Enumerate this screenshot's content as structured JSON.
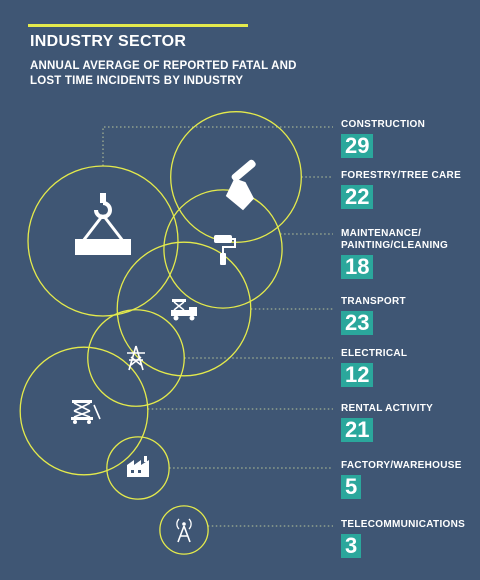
{
  "header": {
    "title": "INDUSTRY SECTOR",
    "subtitle": "ANNUAL AVERAGE OF REPORTED FATAL AND LOST TIME INCIDENTS BY INDUSTRY"
  },
  "colors": {
    "background": "#3f5674",
    "accent": "#e4ea4c",
    "value_box": "#2ba79c",
    "text": "#ffffff"
  },
  "chart_data": {
    "type": "bubble",
    "title": "INDUSTRY SECTOR",
    "subtitle": "ANNUAL AVERAGE OF REPORTED FATAL AND LOST TIME INCIDENTS BY INDUSTRY",
    "categories": [
      "CONSTRUCTION",
      "FORESTRY/TREE CARE",
      "MAINTENANCE/ PAINTING/CLEANING",
      "TRANSPORT",
      "ELECTRICAL",
      "RENTAL ACTIVITY",
      "FACTORY/WAREHOUSE",
      "TELECOMMUNICATIONS"
    ],
    "values": [
      29,
      22,
      18,
      23,
      12,
      21,
      5,
      3
    ],
    "icons": [
      "crane-hook-icon",
      "chainsaw-icon",
      "paint-roller-icon",
      "truck-lift-icon",
      "power-pylon-icon",
      "scissor-lift-icon",
      "factory-icon",
      "radio-tower-icon"
    ]
  }
}
